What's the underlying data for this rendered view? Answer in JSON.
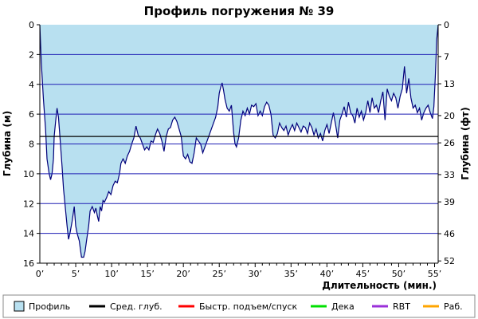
{
  "chart_data": {
    "type": "area",
    "title": "Профиль погружения № 39",
    "xlabel": "Длительность (мин.)",
    "ylabel_left": "Глубина (м)",
    "ylabel_right": "Глубина (фт)",
    "xlim": [
      0,
      55.5
    ],
    "ylim": [
      16,
      0
    ],
    "y_inverted": true,
    "x_ticks": [
      0,
      5,
      10,
      15,
      20,
      25,
      30,
      35,
      40,
      45,
      50,
      55
    ],
    "x_tick_labels": [
      "0’",
      "5’",
      "10’",
      "15’",
      "20’",
      "25’",
      "30’",
      "35’",
      "40’",
      "45’",
      "50’",
      "55’"
    ],
    "y_ticks_left": [
      0,
      2,
      4,
      6,
      8,
      10,
      12,
      14,
      16
    ],
    "y_tick_labels_left": [
      "0",
      "2",
      "4",
      "6",
      "8",
      "10",
      "12",
      "14",
      "16"
    ],
    "y_ticks_right_m": [
      0,
      2.134,
      3.962,
      6.096,
      7.925,
      10.058,
      11.887,
      14.021,
      15.85
    ],
    "y_tick_labels_right": [
      "0",
      "7",
      "13",
      "20",
      "26",
      "33",
      "39",
      "46",
      "52"
    ],
    "avg_depth_m": 7.5,
    "grid": true,
    "legend_position": "bottom",
    "colors": {
      "profile_fill": "#b8e0f0",
      "profile_line": "#00007a",
      "grid": "#1e1eb4",
      "avg_line": "#000000",
      "fast_ascent": "#ff0000",
      "deco": "#00e000",
      "rbt": "#9b30d9",
      "work": "#ffa500",
      "frame": "#000000"
    },
    "legend": [
      {
        "label": "Профиль",
        "kind": "box",
        "color": "#b8e0f0"
      },
      {
        "label": "Сред. глуб.",
        "kind": "line",
        "color": "#000000"
      },
      {
        "label": "Быстр. подъем/спуск",
        "kind": "line",
        "color": "#ff0000"
      },
      {
        "label": "Дека",
        "kind": "line",
        "color": "#00e000"
      },
      {
        "label": "RBT",
        "kind": "line",
        "color": "#9b30d9"
      },
      {
        "label": "Раб.",
        "kind": "line",
        "color": "#ffa500"
      }
    ],
    "series": [
      {
        "name": "Профиль",
        "points": [
          [
            0,
            0
          ],
          [
            0.2,
            2.5
          ],
          [
            0.5,
            5
          ],
          [
            0.8,
            7
          ],
          [
            1,
            9
          ],
          [
            1.3,
            10
          ],
          [
            1.5,
            10.4
          ],
          [
            1.7,
            10
          ],
          [
            1.9,
            9
          ],
          [
            2,
            7.5
          ],
          [
            2.2,
            6.5
          ],
          [
            2.4,
            5.6
          ],
          [
            2.6,
            6.2
          ],
          [
            2.8,
            7.5
          ],
          [
            3.1,
            9.5
          ],
          [
            3.3,
            11
          ],
          [
            3.6,
            12.5
          ],
          [
            3.8,
            13.5
          ],
          [
            4,
            14.4
          ],
          [
            4.2,
            14
          ],
          [
            4.5,
            13.2
          ],
          [
            4.8,
            12.2
          ],
          [
            5,
            13.5
          ],
          [
            5.2,
            14
          ],
          [
            5.5,
            14.5
          ],
          [
            5.8,
            15.6
          ],
          [
            6.1,
            15.6
          ],
          [
            6.3,
            15.2
          ],
          [
            6.5,
            14.5
          ],
          [
            6.8,
            13.5
          ],
          [
            7,
            12.5
          ],
          [
            7.3,
            12.2
          ],
          [
            7.6,
            12.6
          ],
          [
            7.8,
            12.3
          ],
          [
            8,
            12.8
          ],
          [
            8.2,
            13.2
          ],
          [
            8.4,
            12.2
          ],
          [
            8.6,
            12.5
          ],
          [
            8.8,
            11.8
          ],
          [
            9,
            11.9
          ],
          [
            9.3,
            11.6
          ],
          [
            9.6,
            11.2
          ],
          [
            9.9,
            11.4
          ],
          [
            10.2,
            10.8
          ],
          [
            10.5,
            10.5
          ],
          [
            10.8,
            10.6
          ],
          [
            11.1,
            10
          ],
          [
            11.3,
            9.3
          ],
          [
            11.6,
            9
          ],
          [
            11.9,
            9.3
          ],
          [
            12.2,
            8.8
          ],
          [
            12.5,
            8.5
          ],
          [
            12.8,
            8
          ],
          [
            13.1,
            7.6
          ],
          [
            13.4,
            6.8
          ],
          [
            13.7,
            7.4
          ],
          [
            14,
            7.6
          ],
          [
            14.3,
            8
          ],
          [
            14.6,
            8.4
          ],
          [
            14.9,
            8.2
          ],
          [
            15.2,
            8.4
          ],
          [
            15.5,
            7.8
          ],
          [
            15.8,
            7.9
          ],
          [
            16.1,
            7.4
          ],
          [
            16.4,
            7
          ],
          [
            16.7,
            7.3
          ],
          [
            17,
            7.8
          ],
          [
            17.3,
            8.5
          ],
          [
            17.6,
            7.5
          ],
          [
            17.9,
            7
          ],
          [
            18.2,
            6.9
          ],
          [
            18.5,
            6.4
          ],
          [
            18.8,
            6.2
          ],
          [
            19.1,
            6.5
          ],
          [
            19.4,
            7
          ],
          [
            19.7,
            7.5
          ],
          [
            20,
            8.8
          ],
          [
            20.3,
            9
          ],
          [
            20.6,
            8.7
          ],
          [
            20.9,
            9.2
          ],
          [
            21.2,
            9.3
          ],
          [
            21.5,
            8.6
          ],
          [
            21.8,
            7.6
          ],
          [
            22.1,
            7.8
          ],
          [
            22.4,
            8
          ],
          [
            22.7,
            8.6
          ],
          [
            23,
            8.2
          ],
          [
            23.3,
            7.8
          ],
          [
            23.6,
            7.4
          ],
          [
            23.9,
            7
          ],
          [
            24.2,
            6.6
          ],
          [
            24.5,
            6.2
          ],
          [
            24.8,
            5.5
          ],
          [
            25,
            4.6
          ],
          [
            25.2,
            4.2
          ],
          [
            25.4,
            3.9
          ],
          [
            25.6,
            4.4
          ],
          [
            25.8,
            5
          ],
          [
            26.1,
            5.6
          ],
          [
            26.4,
            5.8
          ],
          [
            26.7,
            5.4
          ],
          [
            27,
            7.2
          ],
          [
            27.2,
            8
          ],
          [
            27.4,
            8.2
          ],
          [
            27.7,
            7.6
          ],
          [
            28,
            6.4
          ],
          [
            28.3,
            5.8
          ],
          [
            28.6,
            6.1
          ],
          [
            28.9,
            5.6
          ],
          [
            29.2,
            6
          ],
          [
            29.5,
            5.4
          ],
          [
            29.8,
            5.5
          ],
          [
            30.1,
            5.3
          ],
          [
            30.4,
            6.1
          ],
          [
            30.7,
            5.8
          ],
          [
            31,
            6.1
          ],
          [
            31.3,
            5.5
          ],
          [
            31.6,
            5.2
          ],
          [
            31.9,
            5.4
          ],
          [
            32.2,
            6
          ],
          [
            32.5,
            7.4
          ],
          [
            32.8,
            7.6
          ],
          [
            33.1,
            7.3
          ],
          [
            33.4,
            6.6
          ],
          [
            33.7,
            6.9
          ],
          [
            34,
            7.1
          ],
          [
            34.3,
            6.8
          ],
          [
            34.6,
            7.4
          ],
          [
            34.9,
            7
          ],
          [
            35.2,
            6.7
          ],
          [
            35.5,
            7.1
          ],
          [
            35.8,
            6.6
          ],
          [
            36.1,
            6.9
          ],
          [
            36.4,
            7.2
          ],
          [
            36.7,
            6.8
          ],
          [
            37,
            6.9
          ],
          [
            37.3,
            7.3
          ],
          [
            37.6,
            6.6
          ],
          [
            37.9,
            6.9
          ],
          [
            38.2,
            7.4
          ],
          [
            38.5,
            7
          ],
          [
            38.8,
            7.6
          ],
          [
            39.1,
            7.3
          ],
          [
            39.4,
            7.8
          ],
          [
            39.7,
            7.1
          ],
          [
            40,
            6.7
          ],
          [
            40.3,
            7.3
          ],
          [
            40.6,
            6.6
          ],
          [
            40.9,
            5.9
          ],
          [
            41.2,
            6.7
          ],
          [
            41.5,
            7.6
          ],
          [
            41.8,
            6.4
          ],
          [
            42.1,
            6
          ],
          [
            42.4,
            5.5
          ],
          [
            42.7,
            6.2
          ],
          [
            43,
            5.2
          ],
          [
            43.3,
            5.9
          ],
          [
            43.6,
            6.1
          ],
          [
            43.9,
            6.6
          ],
          [
            44.2,
            5.6
          ],
          [
            44.5,
            6.2
          ],
          [
            44.8,
            5.8
          ],
          [
            45.1,
            6.4
          ],
          [
            45.4,
            5.9
          ],
          [
            45.7,
            5.1
          ],
          [
            46,
            5.9
          ],
          [
            46.3,
            4.9
          ],
          [
            46.6,
            5.6
          ],
          [
            46.9,
            5.4
          ],
          [
            47.2,
            5.9
          ],
          [
            47.5,
            5.1
          ],
          [
            47.8,
            4.5
          ],
          [
            48.1,
            6.4
          ],
          [
            48.4,
            4.3
          ],
          [
            48.7,
            4.8
          ],
          [
            49,
            5.1
          ],
          [
            49.3,
            4.6
          ],
          [
            49.6,
            4.9
          ],
          [
            49.9,
            5.6
          ],
          [
            50.2,
            4.8
          ],
          [
            50.5,
            4.3
          ],
          [
            50.8,
            2.8
          ],
          [
            51.1,
            4.6
          ],
          [
            51.4,
            3.6
          ],
          [
            51.7,
            4.9
          ],
          [
            52,
            5.6
          ],
          [
            52.3,
            5.4
          ],
          [
            52.6,
            5.9
          ],
          [
            52.9,
            5.6
          ],
          [
            53.2,
            6.4
          ],
          [
            53.5,
            5.9
          ],
          [
            53.8,
            5.6
          ],
          [
            54.1,
            5.4
          ],
          [
            54.4,
            5.9
          ],
          [
            54.7,
            6.3
          ],
          [
            54.9,
            5.5
          ],
          [
            55.1,
            3.5
          ],
          [
            55.3,
            1
          ],
          [
            55.5,
            0
          ]
        ]
      }
    ]
  }
}
